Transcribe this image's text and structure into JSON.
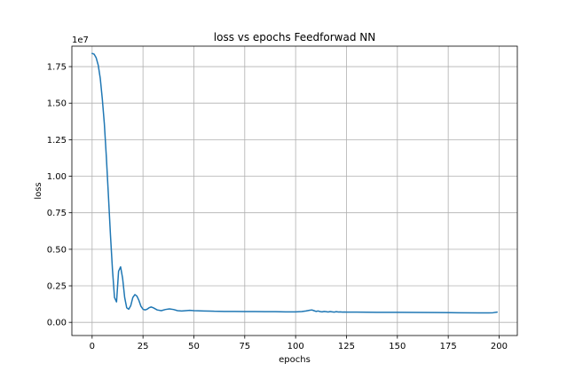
{
  "chart_data": {
    "type": "line",
    "title": "loss vs epochs Feedforwad NN",
    "xlabel": "epochs",
    "ylabel": "loss",
    "y_offset_label": "1e7",
    "xlim": [
      -9.95,
      208.95
    ],
    "ylim": [
      -0.09,
      1.89
    ],
    "grid": true,
    "legend": "none",
    "x_ticks": [
      0,
      25,
      50,
      75,
      100,
      125,
      150,
      175,
      200
    ],
    "x_tick_labels": [
      "0",
      "25",
      "50",
      "75",
      "100",
      "125",
      "150",
      "175",
      "200"
    ],
    "y_ticks": [
      0.0,
      0.25,
      0.5,
      0.75,
      1.0,
      1.25,
      1.5,
      1.75
    ],
    "y_tick_labels": [
      "0.00",
      "0.25",
      "0.50",
      "0.75",
      "1.00",
      "1.25",
      "1.50",
      "1.75"
    ],
    "series": [
      {
        "color": "#1f77b4",
        "x": [
          0,
          1,
          2,
          3,
          4,
          5,
          6,
          7,
          8,
          9,
          10,
          11,
          12,
          13,
          14,
          15,
          16,
          17,
          18,
          19,
          20,
          21,
          22,
          23,
          24,
          25,
          26,
          27,
          28,
          29,
          30,
          32,
          34,
          36,
          38,
          40,
          42,
          44,
          46,
          48,
          50,
          52,
          55,
          58,
          60,
          65,
          70,
          75,
          80,
          85,
          90,
          95,
          100,
          103,
          105,
          107,
          108,
          109,
          110,
          111,
          112,
          113,
          114,
          115,
          116,
          117,
          118,
          119,
          120,
          121,
          122,
          123,
          124,
          125,
          130,
          140,
          150,
          160,
          170,
          180,
          190,
          195,
          197,
          199
        ],
        "y": [
          1.84,
          1.835,
          1.81,
          1.76,
          1.67,
          1.53,
          1.36,
          1.13,
          0.87,
          0.6,
          0.36,
          0.17,
          0.14,
          0.35,
          0.38,
          0.3,
          0.17,
          0.1,
          0.09,
          0.115,
          0.17,
          0.19,
          0.18,
          0.15,
          0.11,
          0.09,
          0.085,
          0.09,
          0.1,
          0.105,
          0.1,
          0.085,
          0.08,
          0.088,
          0.092,
          0.088,
          0.08,
          0.078,
          0.08,
          0.082,
          0.08,
          0.079,
          0.078,
          0.077,
          0.076,
          0.075,
          0.075,
          0.074,
          0.074,
          0.073,
          0.073,
          0.072,
          0.072,
          0.074,
          0.078,
          0.083,
          0.085,
          0.08,
          0.075,
          0.078,
          0.074,
          0.072,
          0.075,
          0.073,
          0.071,
          0.074,
          0.072,
          0.07,
          0.073,
          0.071,
          0.072,
          0.07,
          0.071,
          0.07,
          0.07,
          0.069,
          0.069,
          0.068,
          0.067,
          0.066,
          0.065,
          0.065,
          0.066,
          0.07
        ]
      }
    ]
  }
}
